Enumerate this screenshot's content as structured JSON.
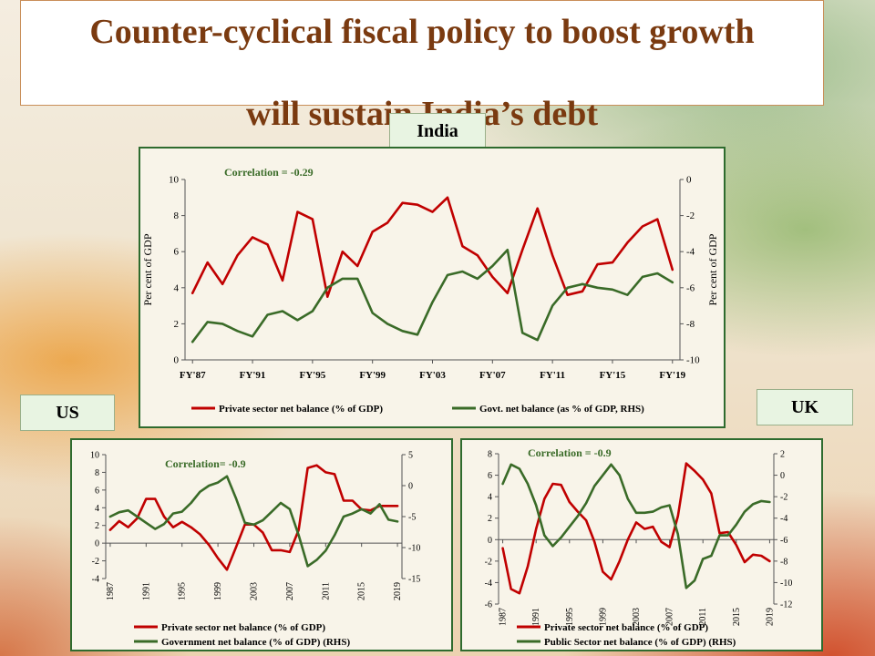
{
  "title": {
    "line1": "Counter-cyclical fiscal policy to boost growth",
    "line2": "will sustain India’s debt"
  },
  "labels": {
    "india": "India",
    "us": "US",
    "uk": "UK"
  },
  "colors": {
    "private": "#c00000",
    "govt": "#3a6b28",
    "correlation_text": "#3a6b28"
  },
  "chart_data": [
    {
      "id": "india",
      "type": "line",
      "annotation": "Correlation  = -0.29",
      "ylabel": "Per cent of GDP",
      "y2label": "Per cent of GDP",
      "ylim": [
        0,
        10
      ],
      "yticks": [
        "0",
        "2",
        "4",
        "6",
        "8",
        "10"
      ],
      "y2lim": [
        -10,
        0
      ],
      "y2ticks": [
        "-10",
        "-8",
        "-6",
        "-4",
        "-2",
        "0"
      ],
      "x": [
        "FY'87",
        "FY'88",
        "FY'89",
        "FY'90",
        "FY'91",
        "FY'92",
        "FY'93",
        "FY'94",
        "FY'95",
        "FY'96",
        "FY'97",
        "FY'98",
        "FY'99",
        "FY'00",
        "FY'01",
        "FY'02",
        "FY'03",
        "FY'04",
        "FY'05",
        "FY'06",
        "FY'07",
        "FY'08",
        "FY'09",
        "FY'10",
        "FY'11",
        "FY'12",
        "FY'13",
        "FY'14",
        "FY'15",
        "FY'16",
        "FY'17",
        "FY'18",
        "FY'19"
      ],
      "xtick_labels": [
        "FY'87",
        "FY'91",
        "FY'95",
        "FY'99",
        "FY'03",
        "FY'07",
        "FY'11",
        "FY'15",
        "FY'19"
      ],
      "xtick_every": 4,
      "legend_entries": [
        "Private sector net balance (% of GDP)",
        "Govt. net balance (as % of GDP, RHS)"
      ],
      "series": [
        {
          "name": "Private sector net balance (% of GDP)",
          "axis": "left",
          "values": [
            3.7,
            5.4,
            4.2,
            5.8,
            6.8,
            6.4,
            4.4,
            8.2,
            7.8,
            3.5,
            6.0,
            5.2,
            7.1,
            7.6,
            8.7,
            8.6,
            8.2,
            9.0,
            6.3,
            5.8,
            4.6,
            3.7,
            6.1,
            8.4,
            5.8,
            3.6,
            3.8,
            5.3,
            5.4,
            6.5,
            7.4,
            7.8,
            5.0
          ]
        },
        {
          "name": "Govt. net balance (as % of GDP, RHS)",
          "axis": "right",
          "values": [
            -9.0,
            -7.9,
            -8.0,
            -8.4,
            -8.7,
            -7.5,
            -7.3,
            -7.8,
            -7.3,
            -6.0,
            -5.5,
            -5.5,
            -7.4,
            -8.0,
            -8.4,
            -8.6,
            -6.8,
            -5.3,
            -5.1,
            -5.5,
            -4.8,
            -3.9,
            -8.5,
            -8.9,
            -7.0,
            -6.0,
            -5.8,
            -6.0,
            -6.1,
            -6.4,
            -5.4,
            -5.2,
            -5.7
          ]
        }
      ]
    },
    {
      "id": "us",
      "type": "line",
      "annotation": "Correlation=  -0.9",
      "ylim": [
        -4,
        10
      ],
      "yticks": [
        "-4",
        "-2",
        "0",
        "2",
        "4",
        "6",
        "8",
        "10"
      ],
      "y2lim": [
        -15,
        5
      ],
      "y2ticks": [
        "-15",
        "-10",
        "-5",
        "0",
        "5"
      ],
      "x": [
        "1987",
        "1988",
        "1989",
        "1990",
        "1991",
        "1992",
        "1993",
        "1994",
        "1995",
        "1996",
        "1997",
        "1998",
        "1999",
        "2000",
        "2001",
        "2002",
        "2003",
        "2004",
        "2005",
        "2006",
        "2007",
        "2008",
        "2009",
        "2010",
        "2011",
        "2012",
        "2013",
        "2014",
        "2015",
        "2016",
        "2017",
        "2018",
        "2019"
      ],
      "xtick_labels": [
        "1987",
        "1991",
        "1995",
        "1999",
        "2003",
        "2007",
        "2011",
        "2015",
        "2019"
      ],
      "xtick_every": 4,
      "legend_entries": [
        "Private sector net balance (% of GDP)",
        "Government net balance (% of GDP) (RHS)"
      ],
      "series": [
        {
          "name": "Private sector net balance (% of GDP)",
          "axis": "left",
          "values": [
            1.5,
            2.5,
            1.8,
            2.8,
            5.0,
            5.0,
            3.0,
            1.8,
            2.4,
            1.8,
            1.0,
            -0.2,
            -1.7,
            -3.0,
            -0.5,
            2.1,
            2.1,
            1.2,
            -0.8,
            -0.8,
            -1.0,
            1.5,
            8.5,
            8.8,
            8.0,
            7.8,
            4.8,
            4.8,
            3.8,
            3.7,
            4.2,
            4.2,
            4.2
          ]
        },
        {
          "name": "Government net balance (% of GDP) (RHS)",
          "axis": "right",
          "values": [
            -5.0,
            -4.3,
            -4.0,
            -5.0,
            -6.0,
            -7.0,
            -6.2,
            -4.5,
            -4.2,
            -2.8,
            -1.0,
            0.0,
            0.5,
            1.5,
            -2.0,
            -6.0,
            -6.3,
            -5.6,
            -4.2,
            -2.8,
            -3.8,
            -8.0,
            -13.0,
            -12.0,
            -10.5,
            -8.0,
            -5.0,
            -4.5,
            -3.8,
            -4.5,
            -3.0,
            -5.5,
            -5.8
          ]
        }
      ]
    },
    {
      "id": "uk",
      "type": "line",
      "annotation": "Correlation  = -0.9",
      "ylim": [
        -6,
        8
      ],
      "yticks": [
        "-6",
        "-4",
        "-2",
        "0",
        "2",
        "4",
        "6",
        "8"
      ],
      "y2lim": [
        -12,
        2
      ],
      "y2ticks": [
        "-12",
        "-10",
        "-8",
        "-6",
        "-4",
        "-2",
        "0",
        "2"
      ],
      "x": [
        "1987",
        "1988",
        "1989",
        "1990",
        "1991",
        "1992",
        "1993",
        "1994",
        "1995",
        "1996",
        "1997",
        "1998",
        "1999",
        "2000",
        "2001",
        "2002",
        "2003",
        "2004",
        "2005",
        "2006",
        "2007",
        "2008",
        "2009",
        "2010",
        "2011",
        "2012",
        "2013",
        "2014",
        "2015",
        "2016",
        "2017",
        "2018",
        "2019"
      ],
      "xtick_labels": [
        "1987",
        "1991",
        "1995",
        "1999",
        "2003",
        "2007",
        "2011",
        "2015",
        "2019"
      ],
      "xtick_every": 4,
      "legend_entries": [
        "Private sector net balance (% of GDP)",
        "Public Sector net balance (% of GDP) (RHS)"
      ],
      "series": [
        {
          "name": "Private sector net balance (% of GDP)",
          "axis": "left",
          "values": [
            -0.8,
            -4.6,
            -5.0,
            -2.5,
            1.0,
            3.8,
            5.2,
            5.1,
            3.5,
            2.6,
            1.8,
            -0.2,
            -3.0,
            -3.7,
            -2.0,
            0.0,
            1.6,
            1.0,
            1.2,
            -0.2,
            -0.7,
            2.2,
            7.1,
            6.4,
            5.6,
            4.3,
            0.6,
            0.7,
            -0.5,
            -2.1,
            -1.4,
            -1.5,
            -2.0
          ]
        },
        {
          "name": "Public Sector net balance (% of GDP) (RHS)",
          "axis": "right",
          "values": [
            -0.8,
            1.0,
            0.6,
            -0.8,
            -2.8,
            -5.6,
            -6.6,
            -5.8,
            -4.8,
            -3.8,
            -2.6,
            -1.0,
            0.0,
            1.0,
            0.0,
            -2.2,
            -3.5,
            -3.5,
            -3.4,
            -3.0,
            -2.8,
            -5.5,
            -10.5,
            -9.8,
            -7.8,
            -7.5,
            -5.6,
            -5.6,
            -4.6,
            -3.4,
            -2.7,
            -2.4,
            -2.5
          ]
        }
      ]
    }
  ]
}
